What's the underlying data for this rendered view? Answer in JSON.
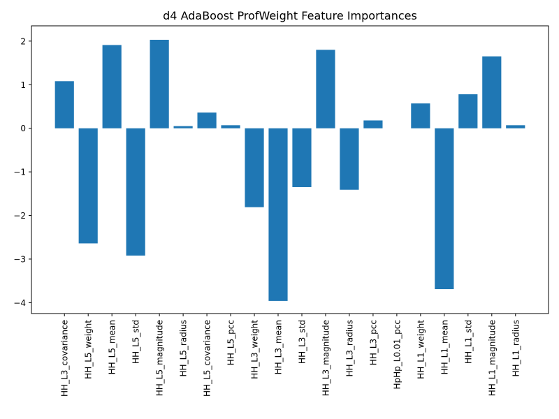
{
  "chart_data": {
    "type": "bar",
    "title": "d4 AdaBoost ProfWeight Feature Importances",
    "xlabel": "",
    "ylabel": "",
    "categories": [
      "HH_L3_covariance",
      "HH_L5_weight",
      "HH_L5_mean",
      "HH_L5_std",
      "HH_L5_magnitude",
      "HH_L5_radius",
      "HH_L5_covariance",
      "HH_L5_pcc",
      "HH_L3_weight",
      "HH_L3_mean",
      "HH_L3_std",
      "HH_L3_magnitude",
      "HH_L3_radius",
      "HH_L3_pcc",
      "HpHp_L0.01_pcc",
      "HH_L1_weight",
      "HH_L1_mean",
      "HH_L1_std",
      "HH_L1_magnitude",
      "HH_L1_radius"
    ],
    "values": [
      1.08,
      -2.64,
      1.91,
      -2.92,
      2.03,
      0.05,
      0.36,
      0.07,
      -1.81,
      -3.96,
      -1.35,
      1.8,
      -1.41,
      0.18,
      0.0,
      0.57,
      -3.69,
      0.78,
      1.65,
      0.07
    ],
    "ylim": [
      -4.25,
      2.35
    ],
    "yticks": [
      -4,
      -3,
      -2,
      -1,
      0,
      1,
      2
    ],
    "ytick_labels": [
      "−4",
      "−3",
      "−2",
      "−1",
      "0",
      "1",
      "2"
    ],
    "bar_color": "#1f77b4",
    "grid": false,
    "legend": "none"
  }
}
